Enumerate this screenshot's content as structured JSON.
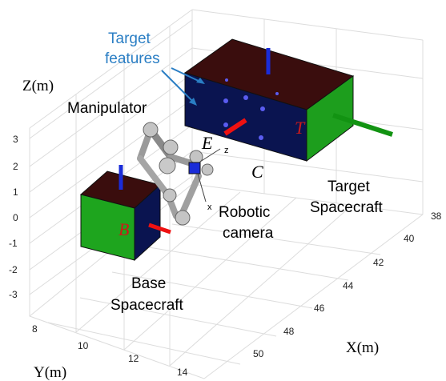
{
  "axes": {
    "z_label": "Z(m)",
    "y_label": "Y(m)",
    "x_label": "X(m)",
    "z_ticks": [
      "3",
      "2",
      "1",
      "0",
      "-1",
      "-2",
      "-3"
    ],
    "y_ticks": [
      "8",
      "10",
      "12",
      "14"
    ],
    "x_ticks": [
      "38",
      "40",
      "42",
      "44",
      "46",
      "48",
      "50"
    ]
  },
  "labels": {
    "target_features_line1": "Target",
    "target_features_line2": "features",
    "manipulator": "Manipulator",
    "end_effector": "E",
    "center": "C",
    "target_frame": "T",
    "base_frame": "B",
    "camera_axis_z": "z",
    "camera_axis_x": "x",
    "robotic_camera_line1": "Robotic",
    "robotic_camera_line2": "camera",
    "target_spacecraft_line1": "Target",
    "target_spacecraft_line2": "Spacecraft",
    "base_spacecraft_line1": "Base",
    "base_spacecraft_line2": "Spacecraft"
  },
  "colors": {
    "cube_top": "#3a0d0d",
    "cube_front": "#0a1450",
    "cube_side": "#1ea51e",
    "target_side": "#1d9e1d",
    "annotation_blue": "#2a7ec4",
    "axis_red": "#ee1111",
    "axis_green": "#129312",
    "axis_blue": "#1a2cd8",
    "feature_dot": "#5b5cf0",
    "frame_label_red": "#cc1a1a"
  }
}
